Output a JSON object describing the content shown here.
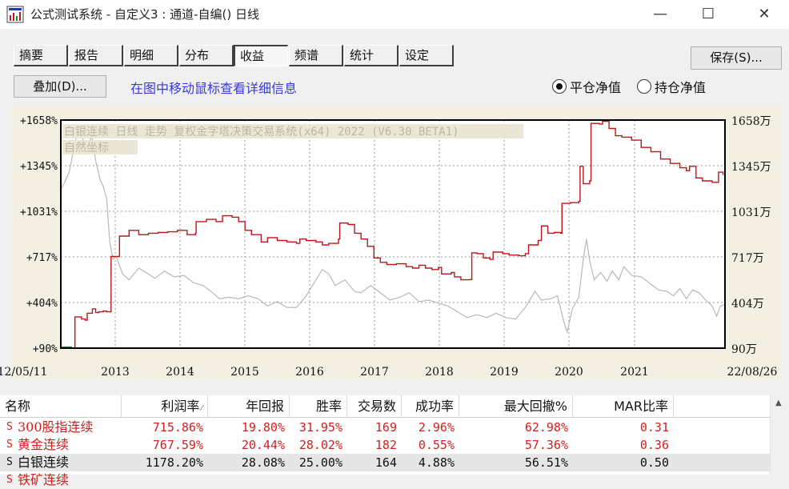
{
  "window": {
    "title": "公式测试系统 - 自定义3 : 通道-自编() 日线",
    "minimize_icon": "—",
    "maximize_icon": "☐",
    "close_icon": "✕"
  },
  "tabs": [
    {
      "label": "摘要"
    },
    {
      "label": "报告"
    },
    {
      "label": "明细"
    },
    {
      "label": "分布"
    },
    {
      "label": "收益",
      "active": true
    },
    {
      "label": "频谱"
    },
    {
      "label": "统计"
    },
    {
      "label": "设定"
    }
  ],
  "save_button": "保存(S)...",
  "overlay_button": "叠加(D)...",
  "hint_text": "在图中移动鼠标查看详细信息",
  "radios": [
    {
      "label": "平仓净值",
      "checked": true
    },
    {
      "label": "持仓净值",
      "checked": false
    }
  ],
  "colors": {
    "equity_line": "#c0141c",
    "price_line": "#b8b8b8",
    "positive_text": "#d21e1e",
    "normal_text": "#111111"
  },
  "chart_data": {
    "type": "line",
    "overlay_caption_1": "白银连续 日线 走势 复权金字塔决策交易系统(x64) 2022 (V6.30 BETA1)",
    "overlay_caption_2": "自然坐标",
    "y_left_ticks": [
      "+1658%",
      "+1345%",
      "+1031%",
      "+717%",
      "+404%",
      "+90%"
    ],
    "y_right_ticks": [
      "1658万",
      "1345万",
      "1031万",
      "717万",
      "404万",
      "90万"
    ],
    "ylim": [
      90,
      1658
    ],
    "x_tick_labels": [
      "12/05/11",
      "2013",
      "2014",
      "2015",
      "2016",
      "2017",
      "2018",
      "2019",
      "2020",
      "2021",
      "22/08/26"
    ],
    "x_range": [
      2012.34,
      2022.65
    ],
    "grid": true,
    "series": [
      {
        "kind": "equity",
        "points": [
          [
            2012.34,
            90
          ],
          [
            2012.55,
            90
          ],
          [
            2012.56,
            305
          ],
          [
            2012.66,
            290
          ],
          [
            2012.72,
            282
          ],
          [
            2012.75,
            330
          ],
          [
            2012.83,
            360
          ],
          [
            2012.88,
            335
          ],
          [
            2012.93,
            340
          ],
          [
            2013.0,
            345
          ],
          [
            2013.05,
            340
          ],
          [
            2013.12,
            720
          ],
          [
            2013.2,
            720
          ],
          [
            2013.25,
            860
          ],
          [
            2013.4,
            900
          ],
          [
            2013.55,
            870
          ],
          [
            2013.7,
            880
          ],
          [
            2013.85,
            885
          ],
          [
            2014.0,
            890
          ],
          [
            2014.15,
            900
          ],
          [
            2014.3,
            870
          ],
          [
            2014.43,
            880
          ],
          [
            2014.44,
            960
          ],
          [
            2014.6,
            975
          ],
          [
            2014.75,
            960
          ],
          [
            2014.85,
            1000
          ],
          [
            2015.0,
            990
          ],
          [
            2015.1,
            960
          ],
          [
            2015.2,
            900
          ],
          [
            2015.3,
            870
          ],
          [
            2015.45,
            820
          ],
          [
            2015.55,
            850
          ],
          [
            2015.7,
            830
          ],
          [
            2015.85,
            820
          ],
          [
            2016.0,
            810
          ],
          [
            2016.05,
            840
          ],
          [
            2016.15,
            830
          ],
          [
            2016.3,
            820
          ],
          [
            2016.4,
            800
          ],
          [
            2016.5,
            810
          ],
          [
            2016.65,
            840
          ],
          [
            2016.67,
            950
          ],
          [
            2016.8,
            940
          ],
          [
            2016.9,
            880
          ],
          [
            2017.0,
            840
          ],
          [
            2017.1,
            790
          ],
          [
            2017.2,
            710
          ],
          [
            2017.3,
            680
          ],
          [
            2017.4,
            665
          ],
          [
            2017.55,
            670
          ],
          [
            2017.7,
            650
          ],
          [
            2017.8,
            640
          ],
          [
            2017.9,
            660
          ],
          [
            2018.0,
            640
          ],
          [
            2018.1,
            630
          ],
          [
            2018.2,
            645
          ],
          [
            2018.25,
            600
          ],
          [
            2018.4,
            610
          ],
          [
            2018.45,
            580
          ],
          [
            2018.55,
            560
          ],
          [
            2018.7,
            562
          ],
          [
            2018.72,
            745
          ],
          [
            2018.8,
            740
          ],
          [
            2018.9,
            710
          ],
          [
            2019.0,
            700
          ],
          [
            2019.05,
            750
          ],
          [
            2019.2,
            740
          ],
          [
            2019.3,
            730
          ],
          [
            2019.45,
            725
          ],
          [
            2019.55,
            740
          ],
          [
            2019.6,
            800
          ],
          [
            2019.75,
            830
          ],
          [
            2019.8,
            930
          ],
          [
            2019.9,
            880
          ],
          [
            2020.0,
            885
          ],
          [
            2020.1,
            880
          ],
          [
            2020.12,
            1085
          ],
          [
            2020.25,
            1090
          ],
          [
            2020.38,
            1100
          ],
          [
            2020.4,
            1340
          ],
          [
            2020.45,
            1220
          ],
          [
            2020.55,
            1240
          ],
          [
            2020.57,
            1635
          ],
          [
            2020.7,
            1630
          ],
          [
            2020.75,
            1650
          ],
          [
            2020.85,
            1600
          ],
          [
            2020.95,
            1550
          ],
          [
            2021.05,
            1540
          ],
          [
            2021.2,
            1520
          ],
          [
            2021.35,
            1470
          ],
          [
            2021.5,
            1440
          ],
          [
            2021.65,
            1390
          ],
          [
            2021.8,
            1360
          ],
          [
            2021.95,
            1330
          ],
          [
            2022.05,
            1310
          ],
          [
            2022.1,
            1340
          ],
          [
            2022.2,
            1260
          ],
          [
            2022.3,
            1240
          ],
          [
            2022.45,
            1230
          ],
          [
            2022.55,
            1300
          ],
          [
            2022.62,
            1280
          ]
        ]
      },
      {
        "kind": "price",
        "points": [
          [
            2012.34,
            1180
          ],
          [
            2012.4,
            1230
          ],
          [
            2012.47,
            1300
          ],
          [
            2012.55,
            1480
          ],
          [
            2012.62,
            1620
          ],
          [
            2012.68,
            1530
          ],
          [
            2012.75,
            1430
          ],
          [
            2012.82,
            1560
          ],
          [
            2012.88,
            1380
          ],
          [
            2012.95,
            1250
          ],
          [
            2013.0,
            1200
          ],
          [
            2013.05,
            1120
          ],
          [
            2013.1,
            820
          ],
          [
            2013.15,
            700
          ],
          [
            2013.2,
            720
          ],
          [
            2013.3,
            600
          ],
          [
            2013.4,
            560
          ],
          [
            2013.55,
            640
          ],
          [
            2013.7,
            600
          ],
          [
            2013.8,
            570
          ],
          [
            2013.95,
            620
          ],
          [
            2014.1,
            580
          ],
          [
            2014.25,
            590
          ],
          [
            2014.4,
            540
          ],
          [
            2014.55,
            520
          ],
          [
            2014.7,
            470
          ],
          [
            2014.8,
            430
          ],
          [
            2014.95,
            440
          ],
          [
            2015.1,
            430
          ],
          [
            2015.25,
            450
          ],
          [
            2015.4,
            430
          ],
          [
            2015.55,
            380
          ],
          [
            2015.7,
            410
          ],
          [
            2015.85,
            370
          ],
          [
            2016.0,
            370
          ],
          [
            2016.15,
            450
          ],
          [
            2016.3,
            560
          ],
          [
            2016.4,
            630
          ],
          [
            2016.5,
            600
          ],
          [
            2016.6,
            520
          ],
          [
            2016.75,
            560
          ],
          [
            2016.9,
            480
          ],
          [
            2017.0,
            470
          ],
          [
            2017.15,
            520
          ],
          [
            2017.3,
            470
          ],
          [
            2017.45,
            420
          ],
          [
            2017.6,
            440
          ],
          [
            2017.75,
            470
          ],
          [
            2017.9,
            410
          ],
          [
            2018.05,
            420
          ],
          [
            2018.2,
            400
          ],
          [
            2018.35,
            380
          ],
          [
            2018.5,
            340
          ],
          [
            2018.65,
            300
          ],
          [
            2018.8,
            320
          ],
          [
            2018.95,
            300
          ],
          [
            2019.1,
            330
          ],
          [
            2019.25,
            300
          ],
          [
            2019.4,
            290
          ],
          [
            2019.55,
            370
          ],
          [
            2019.7,
            480
          ],
          [
            2019.8,
            420
          ],
          [
            2019.95,
            430
          ],
          [
            2020.05,
            450
          ],
          [
            2020.15,
            270
          ],
          [
            2020.2,
            200
          ],
          [
            2020.28,
            360
          ],
          [
            2020.38,
            440
          ],
          [
            2020.45,
            700
          ],
          [
            2020.5,
            840
          ],
          [
            2020.55,
            690
          ],
          [
            2020.62,
            560
          ],
          [
            2020.72,
            610
          ],
          [
            2020.82,
            550
          ],
          [
            2020.9,
            620
          ],
          [
            2021.0,
            560
          ],
          [
            2021.08,
            650
          ],
          [
            2021.2,
            590
          ],
          [
            2021.35,
            580
          ],
          [
            2021.5,
            530
          ],
          [
            2021.62,
            490
          ],
          [
            2021.75,
            480
          ],
          [
            2021.85,
            450
          ],
          [
            2021.95,
            500
          ],
          [
            2022.05,
            430
          ],
          [
            2022.15,
            490
          ],
          [
            2022.25,
            470
          ],
          [
            2022.35,
            420
          ],
          [
            2022.45,
            380
          ],
          [
            2022.52,
            310
          ],
          [
            2022.58,
            380
          ],
          [
            2022.65,
            390
          ]
        ]
      }
    ]
  },
  "table": {
    "headers": [
      "名称",
      "利润率",
      "年回报",
      "胜率",
      "交易数",
      "成功率",
      "最大回撤%",
      "MAR比率"
    ],
    "sort_indicator": "⁄",
    "rows": [
      {
        "flag": "S",
        "name": "300股指连续",
        "profit": "715.86%",
        "annual": "19.80%",
        "winrate": "31.95%",
        "trades": "169",
        "success": "2.96%",
        "drawdown": "62.98%",
        "mar": "0.31",
        "highlight": true
      },
      {
        "flag": "S",
        "name": "黄金连续",
        "profit": "767.59%",
        "annual": "20.44%",
        "winrate": "28.02%",
        "trades": "182",
        "success": "0.55%",
        "drawdown": "57.36%",
        "mar": "0.36",
        "highlight": true
      },
      {
        "flag": "S",
        "name": "白银连续",
        "profit": "1178.20%",
        "annual": "28.08%",
        "winrate": "25.00%",
        "trades": "164",
        "success": "4.88%",
        "drawdown": "56.51%",
        "mar": "0.50",
        "highlight": false,
        "selected": true
      },
      {
        "flag": "S",
        "name": "铁矿连续",
        "profit": "",
        "annual": "",
        "winrate": "",
        "trades": "",
        "success": "",
        "drawdown": "",
        "mar": "",
        "highlight": true
      }
    ]
  }
}
